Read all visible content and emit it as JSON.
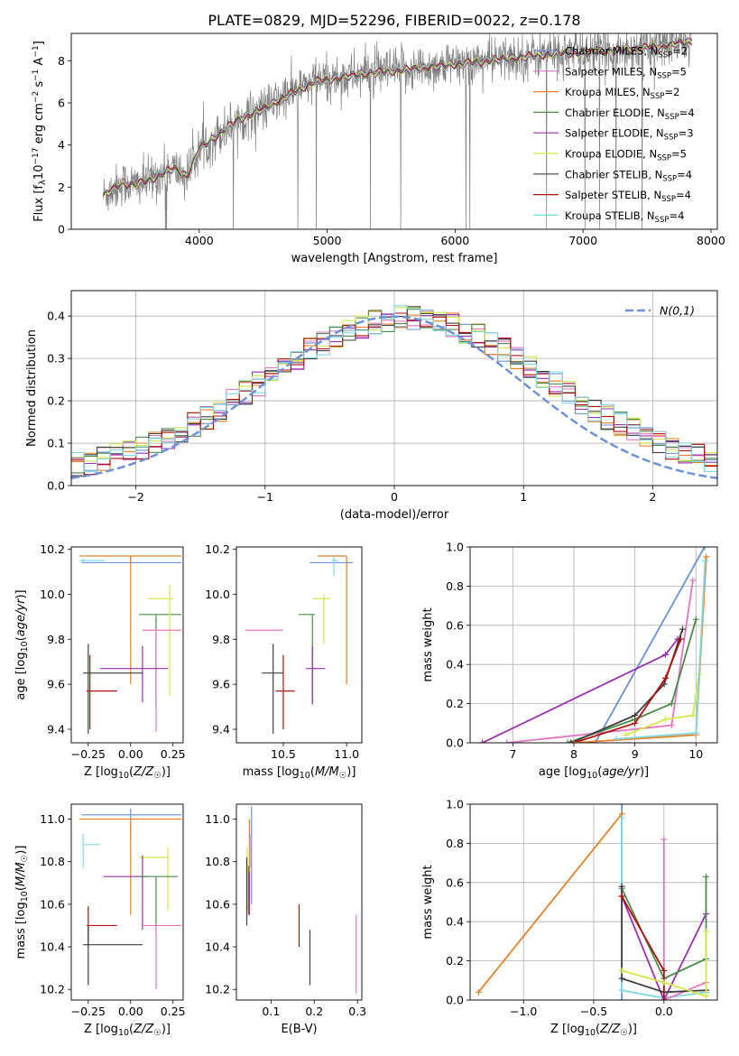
{
  "figure_title": "PLATE=0829, MJD=52296, FIBERID=0022, z=0.178",
  "chart_data": [
    {
      "id": "spectrum",
      "type": "line",
      "xlabel": "wavelength [Angstrom, rest frame]",
      "ylabel": "Flux [f_λ 10^-17 erg cm^-2 s^-1 A^-1]",
      "xlim": [
        3000,
        8050
      ],
      "ylim": [
        0,
        9.3
      ],
      "xticks": [
        4000,
        5000,
        6000,
        7000,
        8000
      ],
      "yticks": [
        0,
        2,
        4,
        6,
        8
      ],
      "legend_position": "upper-right",
      "grid": false,
      "data_color": "#808080",
      "continuum_knots": {
        "x": [
          3250,
          3400,
          3500,
          3600,
          3700,
          3800,
          3900,
          4000,
          4150,
          4300,
          4500,
          4700,
          4900,
          5100,
          5300,
          5500,
          5800,
          6100,
          6400,
          6700,
          7000,
          7300,
          7600,
          7850
        ],
        "y": [
          1.6,
          2.2,
          2.1,
          2.3,
          2.6,
          2.9,
          2.5,
          3.8,
          4.5,
          5.2,
          5.7,
          6.4,
          7.0,
          7.2,
          7.4,
          7.5,
          7.7,
          7.9,
          8.1,
          8.3,
          8.4,
          8.5,
          8.7,
          8.9
        ]
      },
      "series": [
        {
          "name": "Chabrier MILES, N_SSP=2",
          "label_main": "Chabrier MILES, N",
          "label_sub": "SSP",
          "label_tail": "=2",
          "color": "#6b93d6"
        },
        {
          "name": "Salpeter MILES, N_SSP=5",
          "label_main": "Salpeter MILES, N",
          "label_sub": "SSP",
          "label_tail": "=5",
          "color": "#e377c2"
        },
        {
          "name": "Kroupa MILES, N_SSP=2",
          "label_main": "Kroupa MILES, N",
          "label_sub": "SSP",
          "label_tail": "=2",
          "color": "#e8822a"
        },
        {
          "name": "Chabrier ELODIE, N_SSP=4",
          "label_main": "Chabrier ELODIE, N",
          "label_sub": "SSP",
          "label_tail": "=4",
          "color": "#4a8c4a"
        },
        {
          "name": "Salpeter ELODIE, N_SSP=3",
          "label_main": "Salpeter ELODIE, N",
          "label_sub": "SSP",
          "label_tail": "=3",
          "color": "#9b30b0"
        },
        {
          "name": "Kroupa ELODIE, N_SSP=5",
          "label_main": "Kroupa ELODIE, N",
          "label_sub": "SSP",
          "label_tail": "=5",
          "color": "#d4e84e"
        },
        {
          "name": "Chabrier STELIB, N_SSP=4",
          "label_main": "Chabrier STELIB, N",
          "label_sub": "SSP",
          "label_tail": "=4",
          "color": "#404040"
        },
        {
          "name": "Salpeter STELIB, N_SSP=4",
          "label_main": "Salpeter STELIB, N",
          "label_sub": "SSP",
          "label_tail": "=4",
          "color": "#b01010"
        },
        {
          "name": "Kroupa STELIB, N_SSP=4",
          "label_main": "Kroupa STELIB, N",
          "label_sub": "SSP",
          "label_tail": "=4",
          "color": "#80d8e0"
        }
      ]
    },
    {
      "id": "residuals",
      "type": "line",
      "xlabel": "(data-model)/error",
      "ylabel": "Normed distribution",
      "xlim": [
        -2.5,
        2.5
      ],
      "ylim": [
        0,
        0.46
      ],
      "xticks": [
        -2,
        -1,
        0,
        1,
        2
      ],
      "yticks": [
        0.0,
        0.1,
        0.2,
        0.3,
        0.4
      ],
      "grid": true,
      "legend_position": "upper-right",
      "reference_curve": {
        "name": "N(0,1)",
        "color": "#6b93d6",
        "style": "dashed"
      },
      "bin_width": 0.1,
      "bins_from": -2.5,
      "series_colors": [
        "#6b93d6",
        "#e377c2",
        "#e8822a",
        "#4a8c4a",
        "#9b30b0",
        "#d4e84e",
        "#404040",
        "#b01010",
        "#80d8e0"
      ]
    },
    {
      "id": "age_vs_Z",
      "type": "scatter",
      "xlabel": "Z [log10(Z/Z☉)]",
      "ylabel": "age  [log10(age/yr)]",
      "xlim": [
        -0.35,
        0.31
      ],
      "ylim": [
        9.34,
        10.21
      ],
      "xticks": [
        -0.25,
        0.0,
        0.25
      ],
      "xticklabels": [
        "−0.25",
        "0.00",
        "0.25"
      ],
      "yticks": [
        9.4,
        9.6,
        9.8,
        10.0,
        10.2
      ],
      "yticklabels": [
        "9.4",
        "9.6",
        "9.8",
        "10.0",
        "10.2"
      ],
      "grid": false,
      "points": [
        {
          "color": "#6b93d6",
          "x": 0.0,
          "xlo": -0.29,
          "xhi": 0.3,
          "y": 10.14,
          "ylo": 10.14,
          "yhi": 10.17
        },
        {
          "color": "#e8822a",
          "x": 0.0,
          "xlo": -0.3,
          "xhi": 0.3,
          "y": 10.17,
          "ylo": 9.6,
          "yhi": 10.17
        },
        {
          "color": "#80d8e0",
          "x": -0.28,
          "xlo": -0.3,
          "xhi": -0.15,
          "y": 10.15,
          "ylo": 10.14,
          "yhi": 10.16
        },
        {
          "color": "#4a8c4a",
          "x": 0.15,
          "xlo": 0.05,
          "xhi": 0.3,
          "y": 9.91,
          "ylo": 9.5,
          "yhi": 9.91
        },
        {
          "color": "#d4e84e",
          "x": 0.23,
          "xlo": 0.1,
          "xhi": 0.25,
          "y": 9.98,
          "ylo": 9.55,
          "yhi": 10.04
        },
        {
          "color": "#e377c2",
          "x": 0.15,
          "xlo": 0.07,
          "xhi": 0.3,
          "y": 9.84,
          "ylo": 9.39,
          "yhi": 9.84
        },
        {
          "color": "#9b30b0",
          "x": 0.07,
          "xlo": -0.18,
          "xhi": 0.22,
          "y": 9.67,
          "ylo": 9.52,
          "yhi": 9.77
        },
        {
          "color": "#404040",
          "x": -0.25,
          "xlo": -0.28,
          "xhi": 0.07,
          "y": 9.65,
          "ylo": 9.38,
          "yhi": 9.78
        },
        {
          "color": "#b01010",
          "x": -0.24,
          "xlo": -0.26,
          "xhi": -0.08,
          "y": 9.57,
          "ylo": 9.4,
          "yhi": 9.73
        }
      ]
    },
    {
      "id": "age_vs_mass",
      "type": "scatter",
      "xlabel": "mass [log10(M/M☉)]",
      "xlim": [
        10.13,
        11.12
      ],
      "ylim": [
        9.34,
        10.21
      ],
      "xticks": [
        10.5,
        11.0
      ],
      "xticklabels": [
        "10.5",
        "11.0"
      ],
      "yticks": [
        9.4,
        9.6,
        9.8,
        10.0,
        10.2
      ],
      "yticklabels": [
        "9.4",
        "9.6",
        "9.8",
        "10.0",
        "10.2"
      ],
      "grid": false,
      "points": [
        {
          "color": "#6b93d6",
          "x": 11.0,
          "xlo": 10.71,
          "xhi": 11.05,
          "y": 10.14,
          "ylo": 10.14,
          "yhi": 10.16
        },
        {
          "color": "#e8822a",
          "x": 11.0,
          "xlo": 10.77,
          "xhi": 11.0,
          "y": 10.17,
          "ylo": 9.6,
          "yhi": 10.17
        },
        {
          "color": "#80d8e0",
          "x": 10.9,
          "xlo": 10.88,
          "xhi": 10.93,
          "y": 10.15,
          "ylo": 10.08,
          "yhi": 10.17
        },
        {
          "color": "#d4e84e",
          "x": 10.82,
          "xlo": 10.73,
          "xhi": 10.87,
          "y": 9.98,
          "ylo": 9.78,
          "yhi": 10.0
        },
        {
          "color": "#4a8c4a",
          "x": 10.73,
          "xlo": 10.62,
          "xhi": 10.75,
          "y": 9.91,
          "ylo": 9.52,
          "yhi": 9.91
        },
        {
          "color": "#e377c2",
          "x": 10.5,
          "xlo": 10.2,
          "xhi": 10.5,
          "y": 9.84,
          "ylo": 9.84,
          "yhi": 9.84
        },
        {
          "color": "#9b30b0",
          "x": 10.73,
          "xlo": 10.68,
          "xhi": 10.83,
          "y": 9.67,
          "ylo": 9.51,
          "yhi": 9.77
        },
        {
          "color": "#404040",
          "x": 10.42,
          "xlo": 10.33,
          "xhi": 10.5,
          "y": 9.65,
          "ylo": 9.38,
          "yhi": 9.78
        },
        {
          "color": "#b01010",
          "x": 10.5,
          "xlo": 10.44,
          "xhi": 10.59,
          "y": 9.57,
          "ylo": 9.4,
          "yhi": 9.73
        }
      ]
    },
    {
      "id": "weight_vs_age",
      "type": "line",
      "xlabel": "age  [log10(age/yr)]",
      "ylabel": "mass weight",
      "xlim": [
        6.3,
        10.35
      ],
      "ylim": [
        0,
        1.0
      ],
      "xticks": [
        7,
        8,
        9,
        10
      ],
      "xticklabels": [
        "7",
        "8",
        "9",
        "10"
      ],
      "yticks": [
        0.0,
        0.2,
        0.4,
        0.6,
        0.8,
        1.0
      ],
      "yticklabels": [
        "0.0",
        "0.2",
        "0.4",
        "0.6",
        "0.8",
        "1.0"
      ],
      "grid": true,
      "series": [
        {
          "color": "#6b93d6",
          "x": [
            8.35,
            10.14
          ],
          "y": [
            0.0,
            1.0
          ]
        },
        {
          "color": "#e377c2",
          "x": [
            6.9,
            9.6,
            9.95
          ],
          "y": [
            0.0,
            0.09,
            0.83
          ]
        },
        {
          "color": "#9b30b0",
          "x": [
            6.5,
            9.5,
            9.7
          ],
          "y": [
            0.0,
            0.45,
            0.53
          ]
        },
        {
          "color": "#4a8c4a",
          "x": [
            7.9,
            9.0,
            9.6,
            10.0
          ],
          "y": [
            0.0,
            0.12,
            0.2,
            0.63
          ]
        },
        {
          "color": "#404040",
          "x": [
            7.95,
            9.0,
            9.48,
            9.78
          ],
          "y": [
            0.0,
            0.14,
            0.3,
            0.58
          ]
        },
        {
          "color": "#b01010",
          "x": [
            8.0,
            9.0,
            9.5,
            9.75
          ],
          "y": [
            0.0,
            0.1,
            0.33,
            0.53
          ]
        },
        {
          "color": "#e8822a",
          "x": [
            8.0,
            10.0,
            10.17
          ],
          "y": [
            0.0,
            0.04,
            0.95
          ]
        },
        {
          "color": "#d4e84e",
          "x": [
            8.85,
            9.5,
            9.95,
            10.05
          ],
          "y": [
            0.04,
            0.12,
            0.14,
            0.35
          ]
        },
        {
          "color": "#80d8e0",
          "x": [
            8.7,
            10.0,
            10.15
          ],
          "y": [
            0.02,
            0.05,
            0.93
          ]
        }
      ]
    },
    {
      "id": "mass_vs_Z",
      "type": "scatter",
      "xlabel": "Z [log10(Z/Z☉)]",
      "ylabel": "mass [log10(M/M☉)]",
      "xlim": [
        -0.35,
        0.31
      ],
      "ylim": [
        10.15,
        11.07
      ],
      "xticks": [
        -0.25,
        0.0,
        0.25
      ],
      "xticklabels": [
        "−0.25",
        "0.00",
        "0.25"
      ],
      "yticks": [
        10.2,
        10.4,
        10.6,
        10.8,
        11.0
      ],
      "yticklabels": [
        "10.2",
        "10.4",
        "10.6",
        "10.8",
        "11.0"
      ],
      "grid": false,
      "points": [
        {
          "color": "#6b93d6",
          "x": 0.0,
          "xlo": -0.29,
          "xhi": 0.3,
          "y": 11.02,
          "ylo": 10.9,
          "yhi": 11.05
        },
        {
          "color": "#e8822a",
          "x": 0.0,
          "xlo": -0.3,
          "xhi": 0.3,
          "y": 11.0,
          "ylo": 10.55,
          "yhi": 11.0
        },
        {
          "color": "#80d8e0",
          "x": -0.28,
          "xlo": -0.28,
          "xhi": -0.18,
          "y": 10.88,
          "ylo": 10.77,
          "yhi": 10.93
        },
        {
          "color": "#d4e84e",
          "x": 0.22,
          "xlo": 0.05,
          "xhi": 0.22,
          "y": 10.82,
          "ylo": 10.57,
          "yhi": 10.87
        },
        {
          "color": "#9b30b0",
          "x": 0.07,
          "xlo": -0.16,
          "xhi": 0.1,
          "y": 10.73,
          "ylo": 10.48,
          "yhi": 10.83
        },
        {
          "color": "#4a8c4a",
          "x": 0.15,
          "xlo": 0.05,
          "xhi": 0.28,
          "y": 10.73,
          "ylo": 10.48,
          "yhi": 10.73
        },
        {
          "color": "#e377c2",
          "x": 0.15,
          "xlo": 0.07,
          "xhi": 0.3,
          "y": 10.5,
          "ylo": 10.2,
          "yhi": 10.5
        },
        {
          "color": "#b01010",
          "x": -0.25,
          "xlo": -0.26,
          "xhi": -0.08,
          "y": 10.5,
          "ylo": 10.4,
          "yhi": 10.59
        },
        {
          "color": "#404040",
          "x": -0.25,
          "xlo": -0.28,
          "xhi": 0.07,
          "y": 10.41,
          "ylo": 10.22,
          "yhi": 10.5
        }
      ]
    },
    {
      "id": "mass_vs_ebv",
      "type": "scatter",
      "xlabel": "E(B-V)",
      "xlim": [
        0.02,
        0.31
      ],
      "ylim": [
        10.15,
        11.07
      ],
      "xticks": [
        0.1,
        0.2,
        0.3
      ],
      "xticklabels": [
        "0.1",
        "0.2",
        "0.3"
      ],
      "yticks": [
        10.2,
        10.4,
        10.6,
        10.8,
        11.0
      ],
      "yticklabels": [
        "10.2",
        "10.4",
        "10.6",
        "10.8",
        "11.0"
      ],
      "grid": false,
      "points": [
        {
          "color": "#6b93d6",
          "x": 0.055,
          "xlo": 0.055,
          "xhi": 0.055,
          "y": 10.95,
          "ylo": 10.6,
          "yhi": 11.06
        },
        {
          "color": "#e8822a",
          "x": 0.05,
          "xlo": 0.05,
          "xhi": 0.05,
          "y": 10.8,
          "ylo": 10.55,
          "yhi": 11.0
        },
        {
          "color": "#80d8e0",
          "x": 0.052,
          "xlo": 0.052,
          "xhi": 0.052,
          "y": 10.85,
          "ylo": 10.77,
          "yhi": 10.93
        },
        {
          "color": "#d4e84e",
          "x": 0.045,
          "xlo": 0.045,
          "xhi": 0.045,
          "y": 10.8,
          "ylo": 10.57,
          "yhi": 10.87
        },
        {
          "color": "#4a8c4a",
          "x": 0.048,
          "xlo": 0.048,
          "xhi": 0.048,
          "y": 10.7,
          "ylo": 10.55,
          "yhi": 10.78
        },
        {
          "color": "#9b30b0",
          "x": 0.05,
          "xlo": 0.05,
          "xhi": 0.05,
          "y": 10.65,
          "ylo": 10.55,
          "yhi": 10.75
        },
        {
          "color": "#404040",
          "x": 0.044,
          "xlo": 0.044,
          "xhi": 0.044,
          "y": 10.65,
          "ylo": 10.5,
          "yhi": 10.82
        },
        {
          "color": "#b01010",
          "x": 0.165,
          "xlo": 0.165,
          "xhi": 0.165,
          "y": 10.5,
          "ylo": 10.4,
          "yhi": 10.6
        },
        {
          "color": "#404040",
          "x": 0.19,
          "xlo": 0.19,
          "xhi": 0.19,
          "y": 10.35,
          "ylo": 10.22,
          "yhi": 10.48
        },
        {
          "color": "#e377c2",
          "x": 0.297,
          "xlo": 0.297,
          "xhi": 0.297,
          "y": 10.35,
          "ylo": 10.18,
          "yhi": 10.55
        }
      ]
    },
    {
      "id": "weight_vs_Z",
      "type": "line",
      "xlabel": "Z [log10(Z/Z☉)]",
      "ylabel": "mass weight",
      "xlim": [
        -1.38,
        0.38
      ],
      "ylim": [
        0,
        1.0
      ],
      "xticks": [
        -1.0,
        -0.5,
        0.0
      ],
      "xticklabels": [
        "−1.0",
        "−0.5",
        "0.0"
      ],
      "yticks": [
        0.0,
        0.2,
        0.4,
        0.6,
        0.8,
        1.0
      ],
      "yticklabels": [
        "0.0",
        "0.2",
        "0.4",
        "0.6",
        "0.8",
        "1.0"
      ],
      "grid": true,
      "series": [
        {
          "color": "#6b93d6",
          "x": [
            -0.3,
            -0.3
          ],
          "y": [
            0.0,
            1.0
          ]
        },
        {
          "color": "#e8822a",
          "x": [
            -1.32,
            -0.3
          ],
          "y": [
            0.04,
            0.95
          ]
        },
        {
          "color": "#80d8e0",
          "x": [
            -0.3,
            -0.3,
            0.0,
            0.3
          ],
          "y": [
            0.93,
            0.05,
            0.01,
            0.04
          ]
        },
        {
          "color": "#e377c2",
          "x": [
            0.0,
            0.0,
            0.3
          ],
          "y": [
            0.82,
            0.0,
            0.09
          ]
        },
        {
          "color": "#9b30b0",
          "x": [
            -0.3,
            0.0,
            0.3
          ],
          "y": [
            0.53,
            0.0,
            0.44
          ]
        },
        {
          "color": "#4a8c4a",
          "x": [
            -0.3,
            0.0,
            0.3,
            0.3
          ],
          "y": [
            0.57,
            0.11,
            0.21,
            0.63
          ]
        },
        {
          "color": "#404040",
          "x": [
            -0.3,
            -0.3,
            0.0,
            0.3
          ],
          "y": [
            0.58,
            0.11,
            0.04,
            0.05
          ]
        },
        {
          "color": "#b01010",
          "x": [
            -0.3,
            0.0,
            0.0
          ],
          "y": [
            0.53,
            0.15,
            0.0
          ]
        },
        {
          "color": "#d4e84e",
          "x": [
            -0.3,
            0.0,
            0.3,
            0.3
          ],
          "y": [
            0.15,
            0.09,
            0.02,
            0.35
          ]
        }
      ]
    }
  ]
}
